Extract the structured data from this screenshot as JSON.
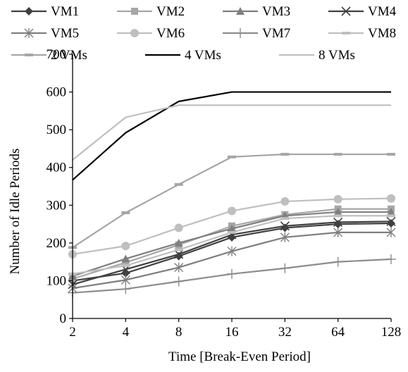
{
  "chart_data": {
    "type": "line",
    "title": "",
    "xlabel": "Time [Break-Even Period]",
    "ylabel": "Number of Idle Periods",
    "categories": [
      "2",
      "4",
      "8",
      "16",
      "32",
      "64",
      "128"
    ],
    "ylim": [
      0,
      700
    ],
    "yticks": [
      0,
      100,
      200,
      300,
      400,
      500,
      600,
      700
    ],
    "grid": false,
    "legend_position": "top",
    "series": [
      {
        "name": "VM1",
        "marker": "diamond",
        "color": "#404040",
        "values": [
          100,
          120,
          165,
          215,
          240,
          250,
          252
        ]
      },
      {
        "name": "VM2",
        "marker": "square",
        "color": "#a6a6a6",
        "values": [
          105,
          148,
          195,
          245,
          275,
          290,
          290
        ]
      },
      {
        "name": "VM3",
        "marker": "triangle",
        "color": "#7f7f7f",
        "values": [
          112,
          158,
          200,
          238,
          272,
          282,
          282
        ]
      },
      {
        "name": "VM4",
        "marker": "x",
        "color": "#404040",
        "values": [
          90,
          130,
          170,
          222,
          245,
          255,
          257
        ]
      },
      {
        "name": "VM5",
        "marker": "star",
        "color": "#7f7f7f",
        "values": [
          80,
          102,
          135,
          178,
          215,
          228,
          228
        ]
      },
      {
        "name": "VM6",
        "marker": "circle",
        "color": "#bfbfbf",
        "values": [
          170,
          192,
          240,
          285,
          310,
          316,
          318
        ]
      },
      {
        "name": "VM7",
        "marker": "plus",
        "color": "#8c8c8c",
        "values": [
          68,
          78,
          98,
          118,
          133,
          150,
          157
        ]
      },
      {
        "name": "VM8",
        "marker": "dash",
        "color": "#bfbfbf",
        "values": [
          118,
          140,
          182,
          228,
          265,
          272,
          272
        ]
      },
      {
        "name": "2 VMs",
        "marker": "dash",
        "color": "#a6a6a6",
        "values": [
          188,
          280,
          355,
          428,
          435,
          435,
          435
        ]
      },
      {
        "name": "4 VMs",
        "marker": "none",
        "color": "#000000",
        "values": [
          367,
          492,
          575,
          600,
          600,
          600,
          600
        ]
      },
      {
        "name": "8 VMs",
        "marker": "none",
        "color": "#bfbfbf",
        "values": [
          420,
          533,
          565,
          565,
          565,
          565,
          565
        ]
      }
    ]
  }
}
